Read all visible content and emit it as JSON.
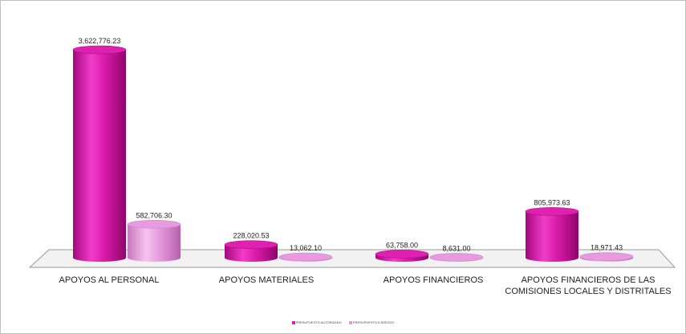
{
  "chart_data": {
    "type": "bar",
    "style": "3d-cylinder",
    "title": "",
    "xlabel": "",
    "ylabel": "",
    "categories": [
      "APOYOS AL PERSONAL",
      "APOYOS MATERIALES",
      "APOYOS FINANCIEROS",
      "APOYOS FINANCIEROS DE LAS COMISIONES LOCALES Y DISTRITALES"
    ],
    "series": [
      {
        "name": "PRESUPUESTO AUTORIZADO",
        "color": "#e020b0",
        "values": [
          3622776.23,
          228020.53,
          63758.0,
          805973.63
        ],
        "labels": [
          "3,622,776.23",
          "228,020.53",
          "63,758.00",
          "805,973.63"
        ]
      },
      {
        "name": "PRESUPUESTO EJERCIDO",
        "color": "#e79ae0",
        "values": [
          582706.3,
          13062.1,
          8631.0,
          18971.43
        ],
        "labels": [
          "582,706.30",
          "13,062.10",
          "8,631.00",
          "18,971.43"
        ]
      }
    ],
    "ylim": [
      0,
      3622776.23
    ],
    "grid": false,
    "legend": "bottom-center"
  }
}
